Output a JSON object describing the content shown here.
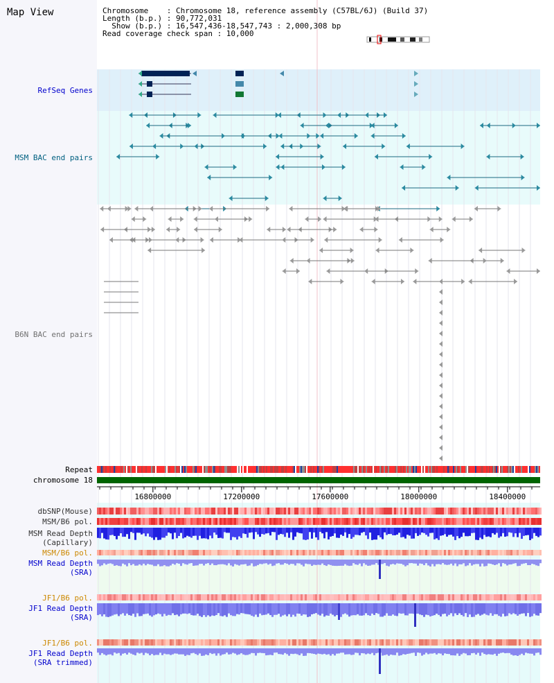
{
  "title": "Map View",
  "info": {
    "line1": "Chromosome    : Chromosome 18, reference assembly (C57BL/6J) (Build 37)",
    "line2": "Length (b.p.) : 90,772,031",
    "line3": "  Show (b.p.) : 16,547,436-18,547,743 : 2,000,308 bp",
    "line4": "Read coverage check span : 10,000"
  },
  "tracks": {
    "refseq": {
      "label": "RefSeq Genes",
      "color": "#0000cc"
    },
    "msm_bac": {
      "label": "MSM BAC end pairs",
      "color": "#006080"
    },
    "b6n_bac": {
      "label": "B6N BAC end pairs",
      "color": "#808080"
    },
    "repeat": {
      "label": "Repeat"
    },
    "chromosome": {
      "label": "chromosome 18",
      "color": "#006400"
    },
    "dbsnp": {
      "label": "dbSNP(Mouse)"
    },
    "msm_b6_pol": {
      "label": "MSM/B6 pol."
    },
    "msm_depth_cap": {
      "label1": "MSM Read Depth",
      "label2": "(Capillary)"
    },
    "msm_b6_pol2": {
      "label": "MSM/B6 pol.",
      "color": "#cc8800"
    },
    "msm_depth_sra": {
      "label1": "MSM Read Depth",
      "label2": "(SRA)",
      "color": "#0000cc"
    },
    "jf1_pol": {
      "label": "JF1/B6 pol.",
      "color": "#cc8800"
    },
    "jf1_depth": {
      "label1": "JF1 Read Depth",
      "label2": "(SRA)",
      "color": "#0000cc"
    },
    "jf1_pol2": {
      "label": "JF1/B6 pol.",
      "color": "#cc8800"
    },
    "jf1_depth_trim": {
      "label1": "JF1 Read Depth",
      "label2": "(SRA trimmed)",
      "color": "#0000cc"
    }
  },
  "axis": {
    "start": 16547436,
    "end": 18547743,
    "ticks": [
      "16800000",
      "17200000",
      "17600000",
      "18000000",
      "18400000"
    ]
  },
  "icons": {
    "chromosome_ideogram": "chromosome-ideogram-icon"
  }
}
